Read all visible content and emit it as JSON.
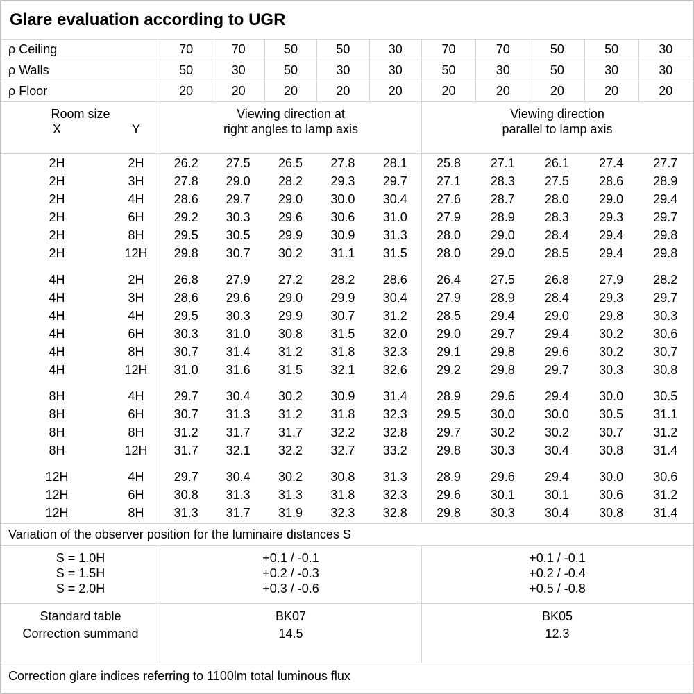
{
  "title": "Glare evaluation according to UGR",
  "colors": {
    "border": "#d4d4d4",
    "outer_border": "#c0c0c0",
    "text": "#000000",
    "background": "#ffffff"
  },
  "reflectance_rows": [
    {
      "label": "ρ Ceiling",
      "values": [
        "70",
        "70",
        "50",
        "50",
        "30",
        "70",
        "70",
        "50",
        "50",
        "30"
      ]
    },
    {
      "label": "ρ Walls",
      "values": [
        "50",
        "30",
        "50",
        "30",
        "30",
        "50",
        "30",
        "50",
        "30",
        "30"
      ]
    },
    {
      "label": "ρ Floor",
      "values": [
        "20",
        "20",
        "20",
        "20",
        "20",
        "20",
        "20",
        "20",
        "20",
        "20"
      ]
    }
  ],
  "room_size": {
    "title": "Room size",
    "x": "X",
    "y": "Y"
  },
  "direction_headers": {
    "right_angles": {
      "line1": "Viewing direction at",
      "line2": "right angles to lamp axis"
    },
    "parallel": {
      "line1": "Viewing direction",
      "line2": "parallel to lamp axis"
    }
  },
  "ugr_table": {
    "blocks": [
      {
        "rows": [
          {
            "x": "2H",
            "y": "2H",
            "right_angles": [
              "26.2",
              "27.5",
              "26.5",
              "27.8",
              "28.1"
            ],
            "parallel": [
              "25.8",
              "27.1",
              "26.1",
              "27.4",
              "27.7"
            ]
          },
          {
            "x": "2H",
            "y": "3H",
            "right_angles": [
              "27.8",
              "29.0",
              "28.2",
              "29.3",
              "29.7"
            ],
            "parallel": [
              "27.1",
              "28.3",
              "27.5",
              "28.6",
              "28.9"
            ]
          },
          {
            "x": "2H",
            "y": "4H",
            "right_angles": [
              "28.6",
              "29.7",
              "29.0",
              "30.0",
              "30.4"
            ],
            "parallel": [
              "27.6",
              "28.7",
              "28.0",
              "29.0",
              "29.4"
            ]
          },
          {
            "x": "2H",
            "y": "6H",
            "right_angles": [
              "29.2",
              "30.3",
              "29.6",
              "30.6",
              "31.0"
            ],
            "parallel": [
              "27.9",
              "28.9",
              "28.3",
              "29.3",
              "29.7"
            ]
          },
          {
            "x": "2H",
            "y": "8H",
            "right_angles": [
              "29.5",
              "30.5",
              "29.9",
              "30.9",
              "31.3"
            ],
            "parallel": [
              "28.0",
              "29.0",
              "28.4",
              "29.4",
              "29.8"
            ]
          },
          {
            "x": "2H",
            "y": "12H",
            "right_angles": [
              "29.8",
              "30.7",
              "30.2",
              "31.1",
              "31.5"
            ],
            "parallel": [
              "28.0",
              "29.0",
              "28.5",
              "29.4",
              "29.8"
            ]
          }
        ]
      },
      {
        "rows": [
          {
            "x": "4H",
            "y": "2H",
            "right_angles": [
              "26.8",
              "27.9",
              "27.2",
              "28.2",
              "28.6"
            ],
            "parallel": [
              "26.4",
              "27.5",
              "26.8",
              "27.9",
              "28.2"
            ]
          },
          {
            "x": "4H",
            "y": "3H",
            "right_angles": [
              "28.6",
              "29.6",
              "29.0",
              "29.9",
              "30.4"
            ],
            "parallel": [
              "27.9",
              "28.9",
              "28.4",
              "29.3",
              "29.7"
            ]
          },
          {
            "x": "4H",
            "y": "4H",
            "right_angles": [
              "29.5",
              "30.3",
              "29.9",
              "30.7",
              "31.2"
            ],
            "parallel": [
              "28.5",
              "29.4",
              "29.0",
              "29.8",
              "30.3"
            ]
          },
          {
            "x": "4H",
            "y": "6H",
            "right_angles": [
              "30.3",
              "31.0",
              "30.8",
              "31.5",
              "32.0"
            ],
            "parallel": [
              "29.0",
              "29.7",
              "29.4",
              "30.2",
              "30.6"
            ]
          },
          {
            "x": "4H",
            "y": "8H",
            "right_angles": [
              "30.7",
              "31.4",
              "31.2",
              "31.8",
              "32.3"
            ],
            "parallel": [
              "29.1",
              "29.8",
              "29.6",
              "30.2",
              "30.7"
            ]
          },
          {
            "x": "4H",
            "y": "12H",
            "right_angles": [
              "31.0",
              "31.6",
              "31.5",
              "32.1",
              "32.6"
            ],
            "parallel": [
              "29.2",
              "29.8",
              "29.7",
              "30.3",
              "30.8"
            ]
          }
        ]
      },
      {
        "rows": [
          {
            "x": "8H",
            "y": "4H",
            "right_angles": [
              "29.7",
              "30.4",
              "30.2",
              "30.9",
              "31.4"
            ],
            "parallel": [
              "28.9",
              "29.6",
              "29.4",
              "30.0",
              "30.5"
            ]
          },
          {
            "x": "8H",
            "y": "6H",
            "right_angles": [
              "30.7",
              "31.3",
              "31.2",
              "31.8",
              "32.3"
            ],
            "parallel": [
              "29.5",
              "30.0",
              "30.0",
              "30.5",
              "31.1"
            ]
          },
          {
            "x": "8H",
            "y": "8H",
            "right_angles": [
              "31.2",
              "31.7",
              "31.7",
              "32.2",
              "32.8"
            ],
            "parallel": [
              "29.7",
              "30.2",
              "30.2",
              "30.7",
              "31.2"
            ]
          },
          {
            "x": "8H",
            "y": "12H",
            "right_angles": [
              "31.7",
              "32.1",
              "32.2",
              "32.7",
              "33.2"
            ],
            "parallel": [
              "29.8",
              "30.3",
              "30.4",
              "30.8",
              "31.4"
            ]
          }
        ]
      },
      {
        "rows": [
          {
            "x": "12H",
            "y": "4H",
            "right_angles": [
              "29.7",
              "30.4",
              "30.2",
              "30.8",
              "31.3"
            ],
            "parallel": [
              "28.9",
              "29.6",
              "29.4",
              "30.0",
              "30.6"
            ]
          },
          {
            "x": "12H",
            "y": "6H",
            "right_angles": [
              "30.8",
              "31.3",
              "31.3",
              "31.8",
              "32.3"
            ],
            "parallel": [
              "29.6",
              "30.1",
              "30.1",
              "30.6",
              "31.2"
            ]
          },
          {
            "x": "12H",
            "y": "8H",
            "right_angles": [
              "31.3",
              "31.7",
              "31.9",
              "32.3",
              "32.8"
            ],
            "parallel": [
              "29.8",
              "30.3",
              "30.4",
              "30.8",
              "31.4"
            ]
          }
        ]
      }
    ]
  },
  "variation": {
    "caption": "Variation of the observer position for the luminaire distances S",
    "rows": [
      {
        "s": "S = 1.0H",
        "right_angles": "+0.1 / -0.1",
        "parallel": "+0.1 / -0.1"
      },
      {
        "s": "S = 1.5H",
        "right_angles": "+0.2 / -0.3",
        "parallel": "+0.2 / -0.4"
      },
      {
        "s": "S = 2.0H",
        "right_angles": "+0.3 / -0.6",
        "parallel": "+0.5 / -0.8"
      }
    ]
  },
  "summary": {
    "rows": [
      {
        "label": "Standard table",
        "right_angles": "BK07",
        "parallel": "BK05"
      },
      {
        "label": "Correction summand",
        "right_angles": "14.5",
        "parallel": "12.3"
      }
    ]
  },
  "footer": "Correction glare indices referring to 1100lm total luminous flux"
}
